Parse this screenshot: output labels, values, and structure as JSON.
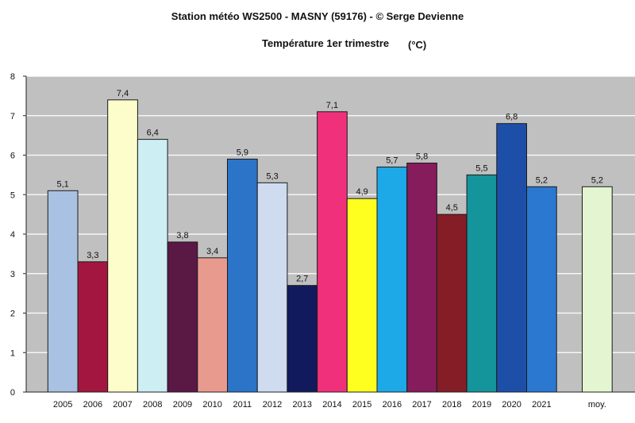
{
  "chart_data": {
    "type": "bar",
    "title": "Station météo WS2500 - MASNY (59176) - © Serge Devienne",
    "subtitle": "Température 1er trimestre",
    "unit": "(°C)",
    "categories": [
      "2005",
      "2006",
      "2007",
      "2008",
      "2009",
      "2010",
      "2011",
      "2012",
      "2013",
      "2014",
      "2015",
      "2016",
      "2017",
      "2018",
      "2019",
      "2020",
      "2021",
      "moy."
    ],
    "values": [
      5.1,
      3.3,
      7.4,
      6.4,
      3.8,
      3.4,
      5.9,
      5.3,
      2.7,
      7.1,
      4.9,
      5.7,
      5.8,
      4.5,
      5.5,
      6.8,
      5.2,
      5.2
    ],
    "value_labels": [
      "5,1",
      "3,3",
      "7,4",
      "6,4",
      "3,8",
      "3,4",
      "5,9",
      "5,3",
      "2,7",
      "7,1",
      "4,9",
      "5,7",
      "5,8",
      "4,5",
      "5,5",
      "6,8",
      "5,2",
      "5,2"
    ],
    "colors": [
      "#a9c2e3",
      "#a3163f",
      "#fdfccb",
      "#cdeef3",
      "#5a1845",
      "#e99a8f",
      "#2b74c7",
      "#cfdcef",
      "#121a5e",
      "#f0307a",
      "#ffff1f",
      "#1da8e8",
      "#861c5c",
      "#841d26",
      "#14949b",
      "#1d4fa8",
      "#2b78d0",
      "#e3f6d1"
    ],
    "ylim": [
      0,
      8
    ],
    "yticks": [
      "0",
      "1",
      "2",
      "3",
      "4",
      "5",
      "6",
      "7",
      "8"
    ],
    "grid": true,
    "legend": "none"
  }
}
